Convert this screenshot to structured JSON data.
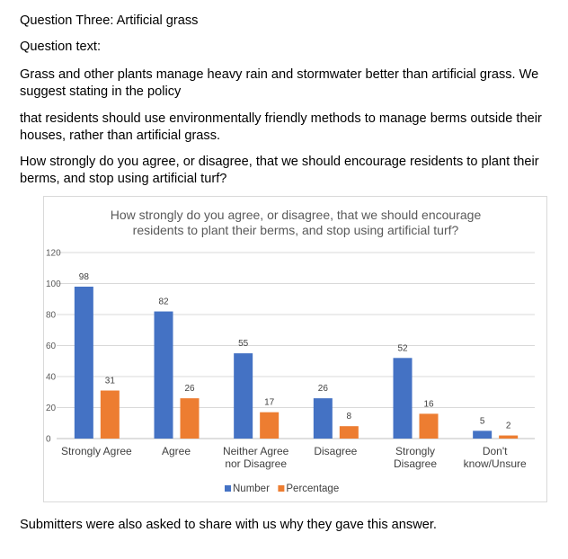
{
  "heading": "Question Three: Artificial grass",
  "question_label": "Question text:",
  "para1": "Grass and other plants manage heavy rain and stormwater better than artificial grass. We suggest stating in the policy",
  "para2": "that residents should use environmentally friendly methods to manage berms outside their houses, rather than artificial grass.",
  "question": "How strongly do you agree, or disagree, that we should encourage residents to plant their berms, and stop using artificial turf?",
  "footer": "Submitters were also asked to share with us why they gave this answer.",
  "chart_data": {
    "type": "bar",
    "title_lines": [
      "How strongly do you agree, or disagree, that we should encourage",
      "residents to plant their berms, and stop using artificial turf?"
    ],
    "categories": [
      [
        "Strongly Agree"
      ],
      [
        "Agree"
      ],
      [
        "Neither Agree",
        "nor Disagree"
      ],
      [
        "Disagree"
      ],
      [
        "Strongly",
        "Disagree"
      ],
      [
        "Don't",
        "know/Unsure"
      ]
    ],
    "series": [
      {
        "name": "Number",
        "color": "#4472c4",
        "values": [
          98,
          82,
          55,
          26,
          52,
          5
        ]
      },
      {
        "name": "Percentage",
        "color": "#ed7d31",
        "values": [
          31,
          26,
          17,
          8,
          16,
          2
        ]
      }
    ],
    "ylim": [
      0,
      120
    ],
    "yticks": [
      0,
      20,
      40,
      60,
      80,
      100,
      120
    ],
    "grid": true,
    "legend": "bottom"
  }
}
